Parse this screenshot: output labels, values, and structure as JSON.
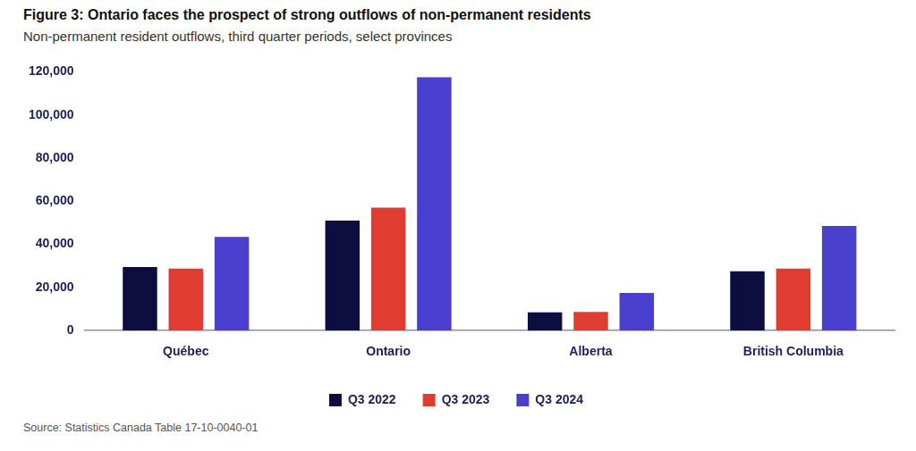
{
  "chart_data": {
    "type": "bar",
    "title": "Figure 3: Ontario faces the prospect of strong outflows of non-permanent residents",
    "subtitle": "Non-permanent resident outflows, third quarter periods, select provinces",
    "annotations": [
      "Source: Statistics Canada Table 17-10-0040-01"
    ],
    "categories": [
      "Québec",
      "Ontario",
      "Alberta",
      "British Columbia"
    ],
    "series": [
      {
        "name": "Q3 2022",
        "color": "#0b0e3f",
        "values": [
          29500,
          51000,
          8500,
          27500
        ]
      },
      {
        "name": "Q3 2023",
        "color": "#e03c32",
        "values": [
          28800,
          57000,
          8700,
          28800
        ]
      },
      {
        "name": "Q3 2024",
        "color": "#4b3fd0",
        "values": [
          43500,
          117500,
          17500,
          48500
        ]
      }
    ],
    "ylim": [
      0,
      120000
    ],
    "yticks": [
      0,
      {
        "value": 20000,
        "label": "20,000"
      },
      {
        "value": 40000,
        "label": "40,000"
      },
      {
        "value": 60000,
        "label": "60,000"
      },
      {
        "value": 80000,
        "label": "80,000"
      },
      {
        "value": 100000,
        "label": "100,000"
      },
      {
        "value": 120000,
        "label": "120,000"
      }
    ],
    "grid": false,
    "legend": "bottom"
  }
}
